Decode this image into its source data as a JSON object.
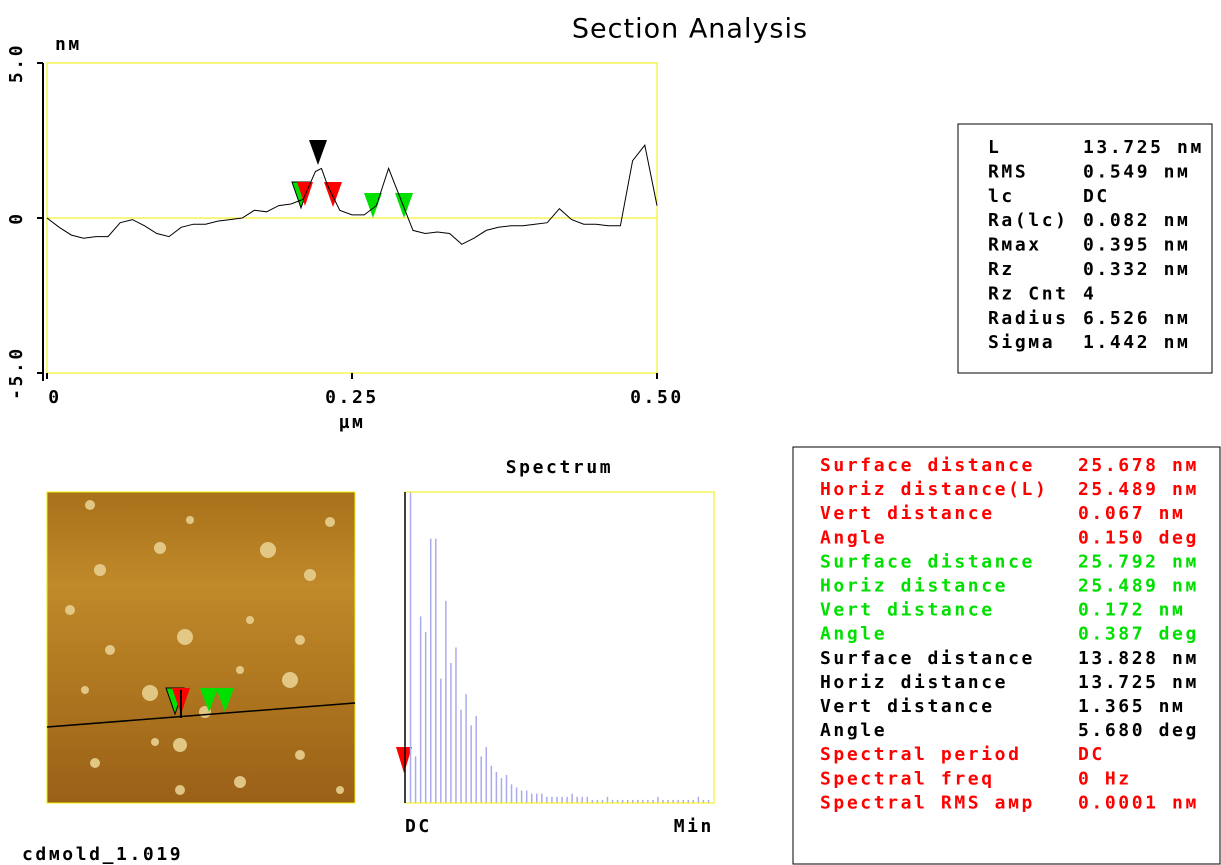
{
  "title": "Section Analysis",
  "chart_data": [
    {
      "type": "line",
      "y_unit": "nм",
      "x_label": "µм",
      "x": [
        0,
        0.01,
        0.02,
        0.03,
        0.04,
        0.05,
        0.06,
        0.07,
        0.08,
        0.09,
        0.1,
        0.11,
        0.12,
        0.13,
        0.14,
        0.15,
        0.16,
        0.17,
        0.18,
        0.19,
        0.2,
        0.21,
        0.22,
        0.225,
        0.23,
        0.24,
        0.25,
        0.26,
        0.27,
        0.28,
        0.29,
        0.3,
        0.31,
        0.32,
        0.33,
        0.34,
        0.35,
        0.36,
        0.37,
        0.38,
        0.39,
        0.4,
        0.41,
        0.42,
        0.43,
        0.44,
        0.45,
        0.46,
        0.47,
        0.48,
        0.49,
        0.5
      ],
      "series": [
        {
          "color": "#000000",
          "values": [
            0,
            -0.3,
            -0.55,
            -0.65,
            -0.6,
            -0.6,
            -0.15,
            -0.05,
            -0.25,
            -0.5,
            -0.6,
            -0.3,
            -0.2,
            -0.2,
            -0.1,
            -0.05,
            0,
            0.25,
            0.2,
            0.4,
            0.45,
            0.6,
            1.5,
            1.6,
            1.05,
            0.25,
            0.1,
            0.1,
            0.4,
            1.6,
            0.6,
            -0.4,
            -0.5,
            -0.45,
            -0.5,
            -0.85,
            -0.65,
            -0.4,
            -0.3,
            -0.25,
            -0.25,
            -0.2,
            -0.15,
            0.3,
            -0.05,
            -0.2,
            -0.2,
            -0.25,
            -0.25,
            1.85,
            2.35,
            0.4
          ]
        }
      ],
      "xlim": [
        0,
        0.5
      ],
      "ylim": [
        -5,
        5
      ],
      "xticks": [
        0,
        0.25,
        {
          "value": 0.5,
          "label": "0.50"
        }
      ],
      "yticks": [
        {
          "value": 5,
          "label": "5.0"
        },
        0,
        {
          "value": -5,
          "label": "-5.0"
        }
      ],
      "frame_color": "#f0f000"
    },
    {
      "type": "bar",
      "title": "Spectrum",
      "x_labels": [
        "DC",
        "Min"
      ],
      "color": "#aaaaee",
      "ylim": [
        0,
        100
      ],
      "values": [
        100,
        15,
        60,
        55,
        85,
        85,
        40,
        65,
        45,
        50,
        30,
        35,
        25,
        28,
        15,
        18,
        12,
        10,
        8,
        9,
        6,
        5,
        4,
        4,
        3,
        3,
        3,
        2,
        2,
        2,
        2,
        2,
        3,
        2,
        2,
        2,
        1,
        1,
        1,
        2,
        1,
        1,
        1,
        1,
        1,
        1,
        1,
        1,
        1,
        2,
        1,
        1,
        1,
        1,
        1,
        1,
        1,
        2,
        1,
        1
      ]
    }
  ],
  "stats": [
    [
      "L",
      "13.725 nм"
    ],
    [
      "RMS",
      "0.549 nм"
    ],
    [
      "lc",
      "DC"
    ],
    [
      "Ra(lc)",
      "0.082 nм"
    ],
    [
      "Rмax",
      "0.395 nм"
    ],
    [
      "Rz",
      "0.332 nм"
    ],
    [
      "Rz Cnt",
      "4"
    ],
    [
      "Radius",
      "6.526 nм"
    ],
    [
      "Sigмa",
      "1.442 nм"
    ]
  ],
  "measurements": [
    {
      "color": "#ff0000",
      "rows": [
        [
          "Surface distance",
          "25.678 nм"
        ],
        [
          "Horiz distance(L)",
          "25.489 nм"
        ],
        [
          "Vert distance",
          "0.067 nм"
        ],
        [
          "Angle",
          "0.150 deg"
        ]
      ]
    },
    {
      "color": "#00e000",
      "rows": [
        [
          "Surface distance",
          "25.792 nм"
        ],
        [
          "Horiz distance",
          "25.489 nм"
        ],
        [
          "Vert distance",
          "0.172 nм"
        ],
        [
          "Angle",
          "0.387 deg"
        ]
      ]
    },
    {
      "color": "#000000",
      "rows": [
        [
          "Surface distance",
          "13.828 nм"
        ],
        [
          "Horiz distance",
          "13.725 nм"
        ],
        [
          "Vert distance",
          "1.365 nм"
        ],
        [
          "Angle",
          "5.680 deg"
        ]
      ]
    },
    {
      "color": "#ff0000",
      "rows": [
        [
          "Spectral period",
          "DC"
        ],
        [
          "Spectral freq",
          "0 Hz"
        ],
        [
          "Spectral RMS aмp",
          "0.0001 nм"
        ]
      ]
    }
  ],
  "image_label": "cdмold_1.019"
}
